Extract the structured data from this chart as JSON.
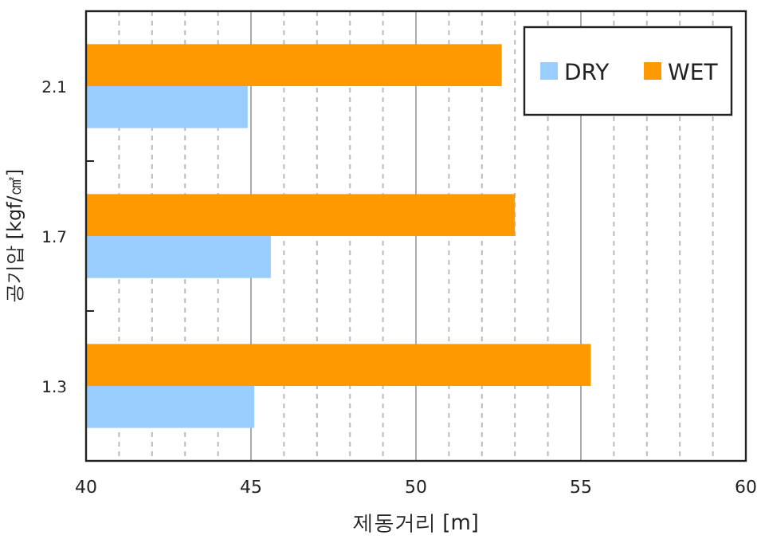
{
  "chart_data": {
    "type": "bar",
    "orientation": "horizontal",
    "xlabel": "제동거리 [m]",
    "ylabel": "공기압 [kgf/㎠]",
    "categories": [
      "2.1",
      "1.7",
      "1.3"
    ],
    "series": [
      {
        "name": "DRY",
        "color": "#99ccff",
        "values": [
          44.9,
          45.6,
          45.1
        ]
      },
      {
        "name": "WET",
        "color": "#ff9900",
        "values": [
          52.6,
          53.0,
          55.3
        ]
      }
    ],
    "xlim": [
      40,
      60
    ],
    "xticks": [
      40,
      45,
      50,
      55,
      60
    ],
    "grid": "x",
    "legend": "top right"
  }
}
